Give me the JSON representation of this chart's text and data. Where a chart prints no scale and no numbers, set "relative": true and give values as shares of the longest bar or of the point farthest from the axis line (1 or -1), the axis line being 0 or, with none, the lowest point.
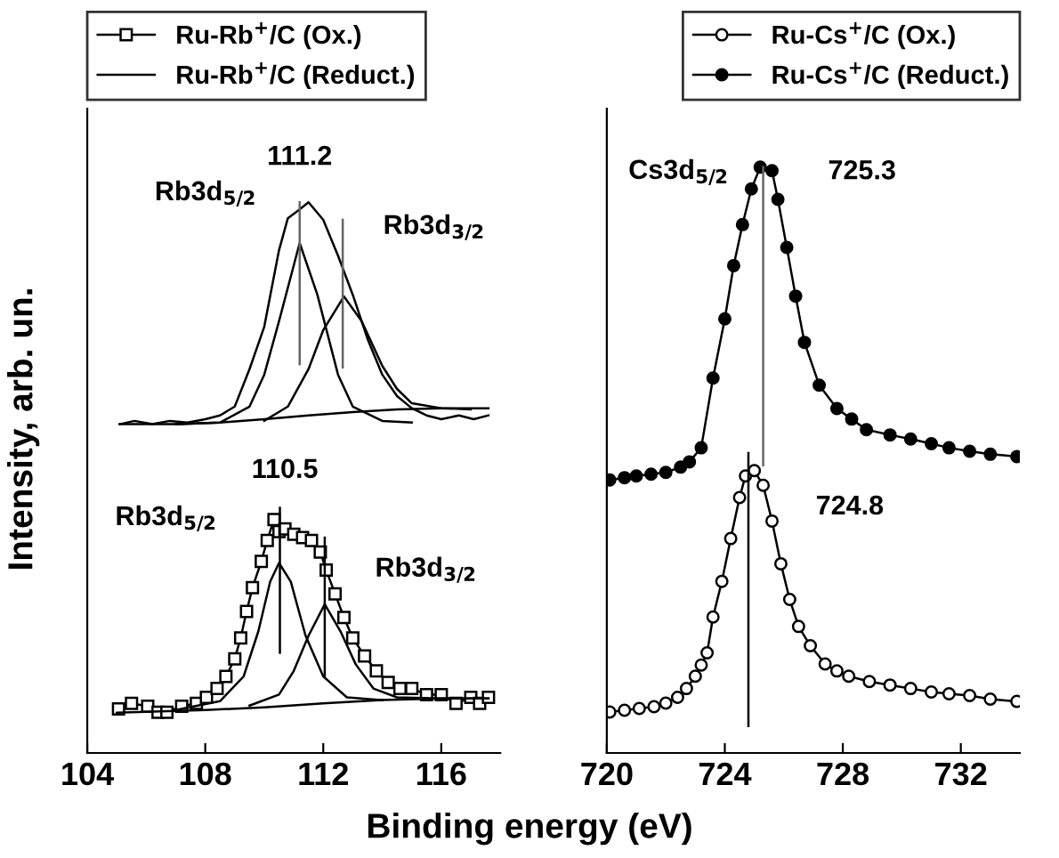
{
  "chart_data": [
    {
      "type": "line",
      "relative": true,
      "xlabel": "Binding energy (eV)",
      "ylabel": "Intensity, arb. un.",
      "xlim": [
        104,
        118
      ],
      "xticks": [
        104,
        108,
        112,
        116
      ],
      "tick_labels": "x",
      "legend": "top left",
      "grid": false,
      "series": [
        {
          "name": "Ru-Rb$^{+}$/C (Ox.)",
          "color": "#000000",
          "marker": "square",
          "x": [
            105.06,
            105.5,
            106.05,
            106.4,
            106.7,
            107.2,
            107.7,
            108.04,
            108.4,
            108.7,
            109.0,
            109.2,
            109.4,
            109.6,
            109.9,
            110.1,
            110.33,
            110.5,
            110.7,
            111.0,
            111.3,
            111.6,
            111.9,
            112.1,
            112.4,
            112.7,
            113.0,
            113.4,
            113.8,
            114.2,
            114.6,
            115.0,
            115.5,
            116.0,
            116.5,
            117.0,
            117.3,
            117.6
          ],
          "values": [
            0.08,
            0.09,
            0.085,
            0.074,
            0.074,
            0.085,
            0.09,
            0.101,
            0.117,
            0.139,
            0.171,
            0.209,
            0.257,
            0.3,
            0.348,
            0.386,
            0.424,
            0.402,
            0.407,
            0.397,
            0.391,
            0.386,
            0.365,
            0.332,
            0.289,
            0.246,
            0.209,
            0.176,
            0.149,
            0.128,
            0.117,
            0.117,
            0.106,
            0.106,
            0.09,
            0.101,
            0.09,
            0.101
          ]
        },
        {
          "name": "Ru-Rb$^{+}$/C (Reduct.)",
          "color": "#000000",
          "marker": "none",
          "x": [
            105.1,
            105.6,
            106.2,
            106.8,
            107.4,
            108.0,
            108.5,
            109.0,
            109.5,
            110.0,
            110.5,
            110.8,
            111.2,
            111.5,
            112.0,
            112.5,
            113.0,
            113.5,
            114.0,
            114.5,
            115.0,
            115.5,
            116.0,
            116.6,
            117.1,
            117.6
          ],
          "values": [
            0.597,
            0.603,
            0.597,
            0.603,
            0.6,
            0.606,
            0.613,
            0.629,
            0.697,
            0.774,
            0.913,
            0.971,
            0.987,
            1.0,
            0.968,
            0.903,
            0.832,
            0.752,
            0.687,
            0.648,
            0.626,
            0.613,
            0.606,
            0.613,
            0.606,
            0.613
          ]
        },
        {
          "color": "#000000",
          "marker": "none",
          "x": [
            107.0,
            108.5,
            109.5,
            110.0,
            110.5,
            111.2,
            111.8,
            112.5,
            113.0,
            114.0,
            115.0
          ],
          "values": [
            0.597,
            0.6,
            0.629,
            0.687,
            0.784,
            0.926,
            0.832,
            0.687,
            0.629,
            0.603,
            0.6
          ]
        },
        {
          "color": "#000000",
          "marker": "none",
          "x": [
            110.0,
            110.8,
            111.5,
            112.0,
            112.7,
            113.3,
            114.0,
            114.5,
            115.0,
            116.0,
            117.0
          ],
          "values": [
            0.603,
            0.629,
            0.697,
            0.768,
            0.829,
            0.784,
            0.703,
            0.661,
            0.635,
            0.626,
            0.624
          ]
        },
        {
          "color": "#000000",
          "marker": "none",
          "x": [
            105.1,
            107.0,
            108.5,
            110.0,
            111.5,
            113.0,
            114.5,
            116.0,
            117.6
          ],
          "values": [
            0.597,
            0.597,
            0.6,
            0.606,
            0.613,
            0.619,
            0.624,
            0.626,
            0.626
          ]
        },
        {
          "color": "#666666",
          "marker": "none",
          "x": [
            111.2,
            111.2
          ],
          "values": [
            1.0,
            0.706
          ]
        },
        {
          "color": "#666666",
          "marker": "none",
          "x": [
            112.66,
            112.66
          ],
          "values": [
            0.968,
            0.7
          ]
        },
        {
          "color": "#000000",
          "marker": "none",
          "x": [
            107.0,
            108.5,
            109.3,
            109.8,
            110.2,
            110.5,
            110.9,
            111.4,
            112.0,
            112.8,
            114.0
          ],
          "values": [
            0.078,
            0.094,
            0.139,
            0.221,
            0.311,
            0.345,
            0.311,
            0.213,
            0.139,
            0.101,
            0.096
          ]
        },
        {
          "color": "#000000",
          "marker": "none",
          "x": [
            109.5,
            110.5,
            111.0,
            111.5,
            112.05,
            112.6,
            113.1,
            113.7,
            114.5,
            116.0,
            117.6
          ],
          "values": [
            0.086,
            0.106,
            0.149,
            0.213,
            0.27,
            0.219,
            0.161,
            0.117,
            0.101,
            0.099,
            0.099
          ]
        },
        {
          "color": "#000000",
          "marker": "none",
          "x": [
            105.0,
            108.0,
            110.0,
            112.0,
            114.0,
            116.0,
            117.6
          ],
          "values": [
            0.073,
            0.078,
            0.083,
            0.09,
            0.096,
            0.099,
            0.099
          ]
        },
        {
          "color": "#000000",
          "marker": "none",
          "x": [
            110.53,
            110.53
          ],
          "values": [
            0.445,
            0.182
          ]
        },
        {
          "color": "#000000",
          "marker": "none",
          "x": [
            112.05,
            112.05
          ],
          "values": [
            0.391,
            0.139
          ]
        }
      ],
      "annotations": [
        {
          "text": "111.2",
          "x": 111.2,
          "y": 1.0
        },
        {
          "text": "Rb3d$_{5/2}$",
          "x": 111.2,
          "y": 0.926
        },
        {
          "text": "Rb3d$_{3/2}$",
          "x": 112.66,
          "y": 0.968
        },
        {
          "text": "110.5",
          "x": 110.53,
          "y": 0.445
        },
        {
          "text": "Rb3d$_{5/2}$",
          "x": 110.53,
          "y": 0.345
        },
        {
          "text": "Rb3d$_{3/2}$",
          "x": 112.05,
          "y": 0.391
        }
      ]
    },
    {
      "type": "line",
      "relative": true,
      "xlim": [
        720,
        734
      ],
      "xticks": [
        720,
        724,
        728,
        732
      ],
      "tick_labels": "x",
      "legend": "top right",
      "grid": false,
      "series": [
        {
          "name": "Ru-Cs$^{+}$/C (Ox.)",
          "color": "#000000",
          "marker": "circle",
          "x": [
            720.1,
            720.6,
            721.1,
            721.6,
            722.0,
            722.4,
            722.7,
            723.0,
            723.2,
            723.4,
            723.6,
            723.9,
            724.2,
            724.5,
            724.7,
            725.0,
            725.3,
            725.6,
            725.9,
            726.2,
            726.5,
            726.9,
            727.4,
            727.8,
            728.2,
            728.9,
            729.6,
            730.3,
            731.0,
            731.6,
            732.3,
            733.0,
            733.9
          ],
          "values": [
            0.07,
            0.073,
            0.076,
            0.079,
            0.085,
            0.095,
            0.11,
            0.131,
            0.15,
            0.171,
            0.232,
            0.293,
            0.366,
            0.436,
            0.473,
            0.482,
            0.457,
            0.396,
            0.323,
            0.262,
            0.216,
            0.183,
            0.152,
            0.14,
            0.131,
            0.122,
            0.116,
            0.11,
            0.104,
            0.101,
            0.098,
            0.092,
            0.088
          ]
        },
        {
          "name": "Ru-Cs$^{+}$/C (Reduct.)",
          "color": "#000000",
          "marker": "circle",
          "x": [
            720.1,
            720.6,
            721.0,
            721.5,
            722.0,
            722.5,
            722.8,
            723.2,
            723.6,
            724.0,
            724.3,
            724.6,
            724.9,
            725.2,
            725.6,
            725.8,
            726.1,
            726.4,
            726.7,
            727.2,
            727.8,
            728.3,
            728.8,
            729.6,
            730.3,
            731.0,
            731.6,
            732.3,
            733.0,
            733.9
          ],
          "values": [
            0.466,
            0.47,
            0.473,
            0.476,
            0.479,
            0.488,
            0.497,
            0.521,
            0.64,
            0.741,
            0.832,
            0.902,
            0.963,
            1.0,
            0.994,
            0.945,
            0.863,
            0.78,
            0.701,
            0.628,
            0.588,
            0.57,
            0.552,
            0.543,
            0.536,
            0.528,
            0.521,
            0.515,
            0.51,
            0.506
          ]
        },
        {
          "color": "#666666",
          "marker": "none",
          "x": [
            725.3,
            725.3
          ],
          "values": [
            1.0,
            0.491
          ]
        },
        {
          "color": "#000000",
          "marker": "none",
          "x": [
            724.8,
            724.8
          ],
          "values": [
            0.512,
            0.046
          ]
        }
      ],
      "annotations": [
        {
          "text": "Cs3d$_{5/2}$",
          "x": 725.2,
          "y": 1.0
        },
        {
          "text": "725.3",
          "x": 725.3,
          "y": 1.0
        },
        {
          "text": "724.8",
          "x": 724.8,
          "y": 0.512
        }
      ]
    }
  ]
}
